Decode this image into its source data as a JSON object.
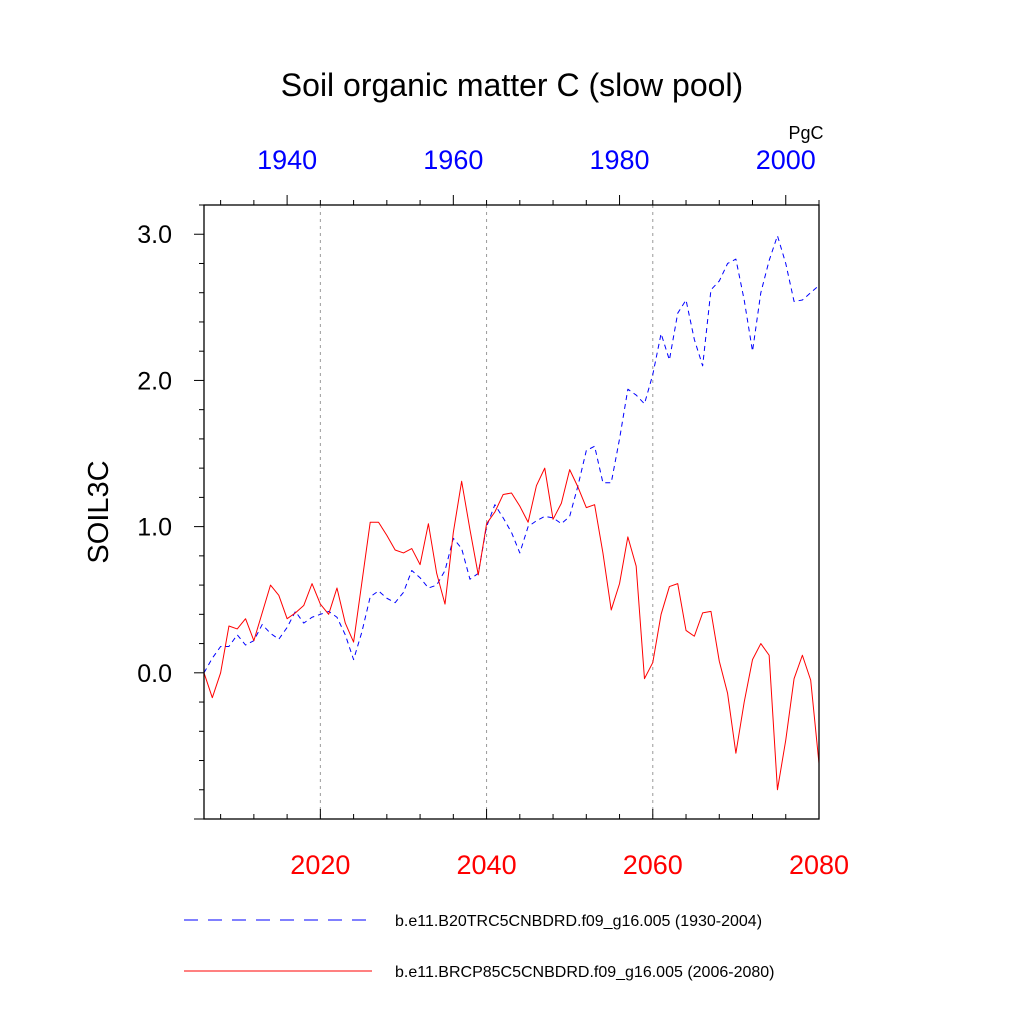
{
  "chart_data": {
    "type": "line",
    "title": "Soil organic matter C (slow pool)",
    "units": "PgC",
    "ylabel": "SOIL3C",
    "ylim": [
      -1.0,
      3.2
    ],
    "yticks": [
      0.0,
      1.0,
      2.0,
      3.0
    ],
    "ytick_labels": [
      "0.0",
      "1.0",
      "2.0",
      "3.0"
    ],
    "x_bottom": {
      "range": [
        2006,
        2080
      ],
      "ticks": [
        2020,
        2040,
        2060,
        2080
      ],
      "tick_labels": [
        "2020",
        "2040",
        "2060",
        "2080"
      ],
      "color": "#ff0000"
    },
    "x_top": {
      "range": [
        1930,
        2004
      ],
      "ticks": [
        1940,
        1960,
        1980,
        2000
      ],
      "tick_labels": [
        "1940",
        "1960",
        "1980",
        "2000"
      ],
      "color": "#0000ff"
    },
    "grid": "vertical dotted at major bottom ticks",
    "legend_position": "bottom",
    "series": [
      {
        "name": "b.e11.B20TRC5CNBDRD.f09_g16.005 (1930-2004)",
        "color": "#0000ff",
        "dash": "dashed",
        "axis": "top",
        "x": [
          1930,
          1931,
          1932,
          1933,
          1934,
          1935,
          1936,
          1937,
          1938,
          1939,
          1940,
          1941,
          1942,
          1943,
          1944,
          1945,
          1946,
          1947,
          1948,
          1949,
          1950,
          1951,
          1952,
          1953,
          1954,
          1955,
          1956,
          1957,
          1958,
          1959,
          1960,
          1961,
          1962,
          1963,
          1964,
          1965,
          1966,
          1967,
          1968,
          1969,
          1970,
          1971,
          1972,
          1973,
          1974,
          1975,
          1976,
          1977,
          1978,
          1979,
          1980,
          1981,
          1982,
          1983,
          1984,
          1985,
          1986,
          1987,
          1988,
          1989,
          1990,
          1991,
          1992,
          1993,
          1994,
          1995,
          1996,
          1997,
          1998,
          1999,
          2000,
          2001,
          2002,
          2003,
          2004
        ],
        "values": [
          0.0,
          0.1,
          0.18,
          0.18,
          0.26,
          0.19,
          0.22,
          0.33,
          0.27,
          0.23,
          0.31,
          0.42,
          0.34,
          0.38,
          0.4,
          0.42,
          0.38,
          0.26,
          0.09,
          0.28,
          0.52,
          0.56,
          0.51,
          0.48,
          0.55,
          0.7,
          0.65,
          0.58,
          0.6,
          0.7,
          0.92,
          0.85,
          0.64,
          0.68,
          1.0,
          1.15,
          1.06,
          0.96,
          0.82,
          1.0,
          1.04,
          1.07,
          1.06,
          1.02,
          1.07,
          1.28,
          1.52,
          1.55,
          1.3,
          1.3,
          1.6,
          1.94,
          1.9,
          1.84,
          2.04,
          2.32,
          2.14,
          2.46,
          2.55,
          2.28,
          2.1,
          2.62,
          2.68,
          2.8,
          2.83,
          2.55,
          2.2,
          2.6,
          2.82,
          2.99,
          2.8,
          2.54,
          2.55,
          2.6,
          2.65
        ]
      },
      {
        "name": "b.e11.BRCP85C5CNBDRD.f09_g16.005 (2006-2080)",
        "color": "#ff0000",
        "dash": "solid",
        "axis": "bottom",
        "x": [
          2006,
          2007,
          2008,
          2009,
          2010,
          2011,
          2012,
          2013,
          2014,
          2015,
          2016,
          2017,
          2018,
          2019,
          2020,
          2021,
          2022,
          2023,
          2024,
          2025,
          2026,
          2027,
          2028,
          2029,
          2030,
          2031,
          2032,
          2033,
          2034,
          2035,
          2036,
          2037,
          2038,
          2039,
          2040,
          2041,
          2042,
          2043,
          2044,
          2045,
          2046,
          2047,
          2048,
          2049,
          2050,
          2051,
          2052,
          2053,
          2054,
          2055,
          2056,
          2057,
          2058,
          2059,
          2060,
          2061,
          2062,
          2063,
          2064,
          2065,
          2066,
          2067,
          2068,
          2069,
          2070,
          2071,
          2072,
          2073,
          2074,
          2075,
          2076,
          2077,
          2078,
          2079,
          2080
        ],
        "values": [
          0.0,
          -0.17,
          0.0,
          0.32,
          0.3,
          0.37,
          0.22,
          0.41,
          0.6,
          0.53,
          0.37,
          0.41,
          0.46,
          0.61,
          0.47,
          0.4,
          0.58,
          0.34,
          0.21,
          0.62,
          1.03,
          1.03,
          0.94,
          0.84,
          0.82,
          0.85,
          0.74,
          1.02,
          0.68,
          0.47,
          0.96,
          1.31,
          0.98,
          0.67,
          1.02,
          1.1,
          1.22,
          1.23,
          1.14,
          1.03,
          1.28,
          1.4,
          1.05,
          1.16,
          1.39,
          1.27,
          1.13,
          1.15,
          0.82,
          0.43,
          0.61,
          0.93,
          0.73,
          -0.04,
          0.07,
          0.4,
          0.59,
          0.61,
          0.29,
          0.25,
          0.41,
          0.42,
          0.08,
          -0.14,
          -0.55,
          -0.2,
          0.09,
          0.2,
          0.12,
          -0.8,
          -0.46,
          -0.04,
          0.12,
          -0.05,
          -0.62
        ]
      }
    ]
  }
}
